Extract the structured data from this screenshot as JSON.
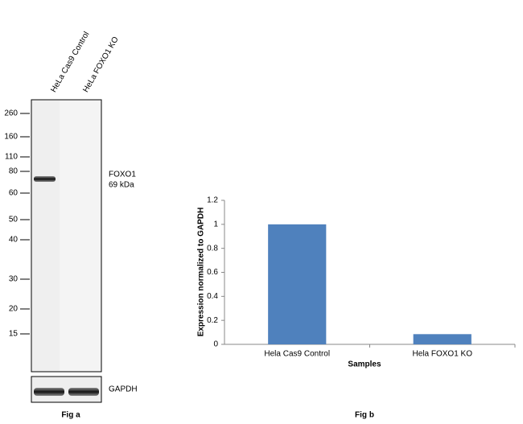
{
  "blot": {
    "lanes": [
      "HeLa Cas9 Control",
      "HeLa FOXO1 KO"
    ],
    "markers": [
      260,
      160,
      110,
      80,
      60,
      50,
      40,
      30,
      20,
      15
    ],
    "band_label": "FOXO1",
    "band_size": "69 kDa",
    "loading_label": "GAPDH",
    "caption": "Fig a"
  },
  "chart_data": {
    "type": "bar",
    "categories": [
      "Hela Cas9 Control",
      "Hela FOXO1 KO"
    ],
    "values": [
      1,
      0.085
    ],
    "color": "#4f81bd",
    "ylim": [
      0,
      1.2
    ],
    "yticks": [
      0,
      0.2,
      0.4,
      0.6,
      0.8,
      1,
      1.2
    ],
    "y_label": "Expression  normalized to GAPDH",
    "x_label": "Samples",
    "caption": "Fig b"
  }
}
